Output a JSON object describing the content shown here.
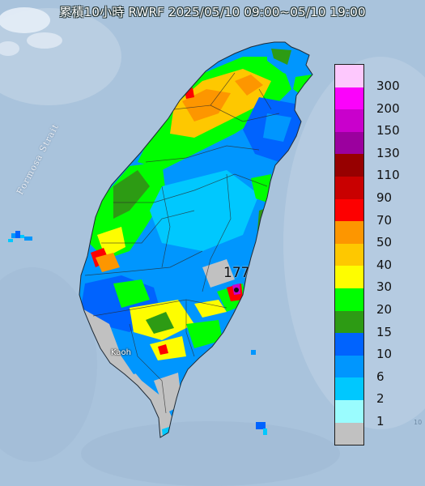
{
  "title": "累積10小時 RWRF 2025/05/10 09:00~05/10 19:00",
  "map_labels": {
    "strait": "Formosa Strait",
    "city": "Kaoh",
    "max_value": "177",
    "edge_tick": "10"
  },
  "legend": [
    {
      "label": "300",
      "color": "#fdc8fd"
    },
    {
      "label": "200",
      "color": "#fb03fb"
    },
    {
      "label": "150",
      "color": "#c900cc"
    },
    {
      "label": "130",
      "color": "#9b009e"
    },
    {
      "label": "110",
      "color": "#970000"
    },
    {
      "label": "90",
      "color": "#c90000"
    },
    {
      "label": "70",
      "color": "#fd0000"
    },
    {
      "label": "50",
      "color": "#fd9600"
    },
    {
      "label": "40",
      "color": "#fec800"
    },
    {
      "label": "30",
      "color": "#fefd00"
    },
    {
      "label": "20",
      "color": "#00fe00"
    },
    {
      "label": "15",
      "color": "#2d9b14"
    },
    {
      "label": "10",
      "color": "#0063fe"
    },
    {
      "label": "6",
      "color": "#0096fe"
    },
    {
      "label": "2",
      "color": "#00c8fe"
    },
    {
      "label": "1",
      "color": "#9afcfe"
    },
    {
      "label": "",
      "color": "#c1c1c1"
    }
  ],
  "colors": {
    "sea": "#a9c3dc",
    "land_background": "#ffffff"
  }
}
